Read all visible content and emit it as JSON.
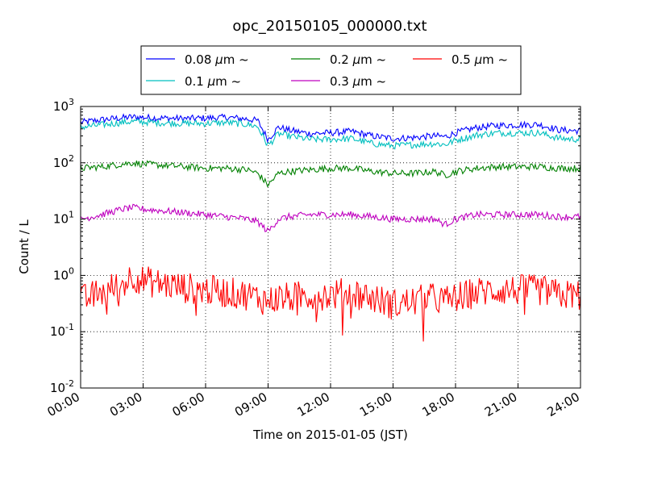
{
  "chart_data": {
    "type": "line",
    "title": "opc_20150105_000000.txt",
    "xlabel": "Time on 2015-01-05 (JST)",
    "ylabel": "Count / L",
    "yscale": "log",
    "ylim": [
      0.01,
      1000
    ],
    "xlim_hours": [
      0,
      24
    ],
    "grid": true,
    "legend_position": "top (above plot)",
    "x_ticks": [
      "00:00",
      "03:00",
      "06:00",
      "09:00",
      "12:00",
      "15:00",
      "18:00",
      "21:00",
      "24:00"
    ],
    "y_ticks": [
      {
        "base": "10",
        "exp": "-2"
      },
      {
        "base": "10",
        "exp": "-1"
      },
      {
        "base": "10",
        "exp": "0"
      },
      {
        "base": "10",
        "exp": "1"
      },
      {
        "base": "10",
        "exp": "2"
      },
      {
        "base": "10",
        "exp": "3"
      }
    ],
    "x_hours": [
      0,
      1,
      2,
      2.5,
      3,
      4,
      5,
      6,
      7,
      8,
      8.5,
      9,
      9.5,
      10,
      11,
      12,
      13,
      14,
      15,
      16,
      17,
      17.5,
      18,
      19,
      20,
      21,
      22,
      23,
      24
    ],
    "series": [
      {
        "name": "0.08",
        "unit": "μm",
        "suffix": "~",
        "color": "#0000ff",
        "values": [
          520,
          580,
          630,
          650,
          640,
          620,
          610,
          620,
          640,
          600,
          560,
          260,
          430,
          380,
          330,
          340,
          360,
          300,
          270,
          280,
          300,
          290,
          340,
          420,
          460,
          470,
          480,
          380,
          370
        ]
      },
      {
        "name": "0.1",
        "unit": "μm",
        "suffix": "~",
        "color": "#00bfbf",
        "values": [
          430,
          470,
          520,
          540,
          530,
          510,
          500,
          500,
          520,
          480,
          440,
          200,
          330,
          300,
          260,
          260,
          270,
          220,
          200,
          210,
          220,
          210,
          250,
          310,
          340,
          340,
          340,
          270,
          260
        ]
      },
      {
        "name": "0.2",
        "unit": "μm",
        "suffix": "~",
        "color": "#008000",
        "values": [
          80,
          85,
          95,
          100,
          95,
          90,
          85,
          80,
          80,
          75,
          65,
          40,
          65,
          70,
          75,
          80,
          80,
          70,
          65,
          65,
          70,
          60,
          70,
          80,
          85,
          85,
          85,
          80,
          80
        ]
      },
      {
        "name": "0.3",
        "unit": "μm",
        "suffix": "~",
        "color": "#bf00bf",
        "values": [
          10,
          12,
          15,
          16,
          15,
          14,
          13,
          12,
          11,
          10,
          9,
          6,
          10,
          11,
          12,
          12,
          12,
          11,
          10,
          10,
          10,
          8,
          10,
          12,
          12,
          12,
          12,
          11,
          11
        ]
      },
      {
        "name": "0.5",
        "unit": "μm",
        "suffix": "~",
        "color": "#ff0000",
        "values": [
          0.35,
          0.5,
          0.7,
          1.0,
          0.8,
          0.7,
          0.6,
          0.55,
          0.5,
          0.45,
          0.4,
          0.35,
          0.4,
          0.4,
          0.45,
          0.45,
          0.5,
          0.4,
          0.3,
          0.35,
          0.4,
          0.35,
          0.4,
          0.5,
          0.55,
          0.55,
          0.55,
          0.45,
          0.45
        ]
      }
    ]
  }
}
